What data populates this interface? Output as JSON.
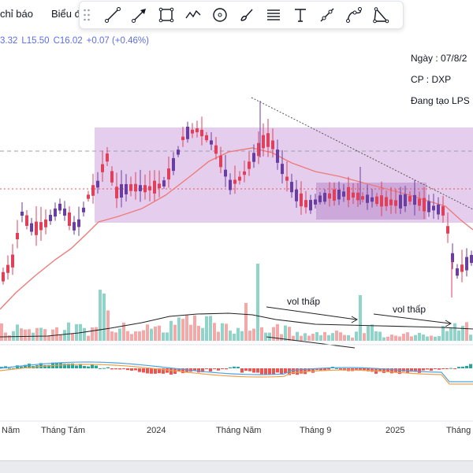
{
  "toolbar": {
    "indicators_label": "chỉ báo",
    "chart_type_label": "Biểu đ",
    "tools": [
      "trend-line-icon",
      "arrow-line-icon",
      "rectangle-icon",
      "path-icon",
      "circle-icon",
      "brush-icon",
      "fib-lines-icon",
      "text-icon",
      "segment-icon",
      "curve-icon",
      "triangle-icon"
    ]
  },
  "ohlc": {
    "h_partial": "3.32",
    "l": "L15.50",
    "c": "C16.02",
    "change": "+0.07 (+0.46%)"
  },
  "info": {
    "date": "Ngày : 07/8/2",
    "symbol": "CP : DXP",
    "creator": "Đang tạo LPS"
  },
  "annotations": {
    "vol_low_1": "vol thấp",
    "vol_low_2": "vol thấp"
  },
  "time_axis": [
    "Năm",
    "Tháng Tám",
    "2024",
    "Tháng Năm",
    "Tháng 9",
    "2025",
    "Tháng"
  ],
  "colors": {
    "up": "#26a69a",
    "down": "#ef5350",
    "up_candle": "#6a3ea1",
    "down_candle": "#e0405a",
    "zone": "#cfa6df",
    "ma": "#ef7a7a",
    "macd": "#4fa3e0",
    "signal": "#f0a04b"
  }
}
